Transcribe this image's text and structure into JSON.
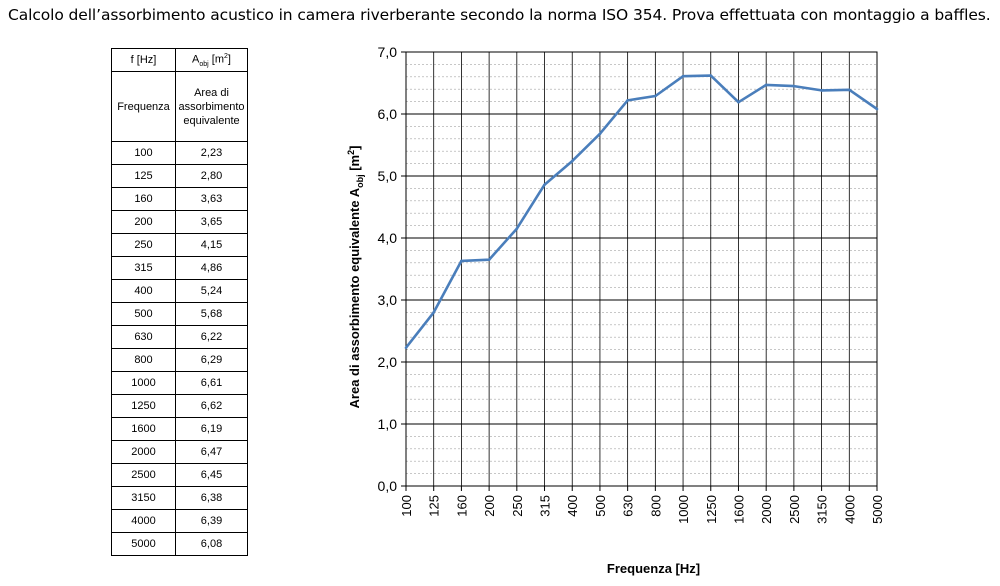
{
  "caption": "Calcolo dell’assorbimento acustico in camera riverberante secondo la norma ISO 354. Prova effettuata con montaggio a baffles.",
  "table": {
    "header_freq": "f [Hz]",
    "header_area_main": "A",
    "header_area_sub": "obj",
    "header_area_unit_open": " [m",
    "header_area_unit_sup": "2",
    "header_area_unit_close": "]",
    "desc_freq": "Frequenza",
    "desc_area_line1": "Area di",
    "desc_area_line2": "assorbimento",
    "desc_area_line3": "equivalente",
    "rows": [
      {
        "f": "100",
        "a": "2,23"
      },
      {
        "f": "125",
        "a": "2,80"
      },
      {
        "f": "160",
        "a": "3,63"
      },
      {
        "f": "200",
        "a": "3,65"
      },
      {
        "f": "250",
        "a": "4,15"
      },
      {
        "f": "315",
        "a": "4,86"
      },
      {
        "f": "400",
        "a": "5,24"
      },
      {
        "f": "500",
        "a": "5,68"
      },
      {
        "f": "630",
        "a": "6,22"
      },
      {
        "f": "800",
        "a": "6,29"
      },
      {
        "f": "1000",
        "a": "6,61"
      },
      {
        "f": "1250",
        "a": "6,62"
      },
      {
        "f": "1600",
        "a": "6,19"
      },
      {
        "f": "2000",
        "a": "6,47"
      },
      {
        "f": "2500",
        "a": "6,45"
      },
      {
        "f": "3150",
        "a": "6,38"
      },
      {
        "f": "4000",
        "a": "6,39"
      },
      {
        "f": "5000",
        "a": "6,08"
      }
    ]
  },
  "chart_data": {
    "type": "line",
    "title": "",
    "xlabel": "Frequenza [Hz]",
    "ylabel_main": "Area di assorbimento equivalente A",
    "ylabel_sub": "obj",
    "ylabel_unit_open": " [m",
    "ylabel_unit_sup": "2",
    "ylabel_unit_close": "]",
    "categories": [
      "100",
      "125",
      "160",
      "200",
      "250",
      "315",
      "400",
      "500",
      "630",
      "800",
      "1000",
      "1250",
      "1600",
      "2000",
      "2500",
      "3150",
      "4000",
      "5000"
    ],
    "series": [
      {
        "values": [
          2.23,
          2.8,
          3.63,
          3.65,
          4.15,
          4.86,
          5.24,
          5.68,
          6.22,
          6.29,
          6.61,
          6.62,
          6.19,
          6.47,
          6.45,
          6.38,
          6.39,
          6.08
        ]
      }
    ],
    "yticks": [
      "0,0",
      "1,0",
      "2,0",
      "3,0",
      "4,0",
      "5,0",
      "6,0",
      "7,0"
    ],
    "ylim": [
      0,
      7
    ],
    "minor_step": 0.2,
    "grid": true,
    "line_color": "#4a7ebb"
  }
}
